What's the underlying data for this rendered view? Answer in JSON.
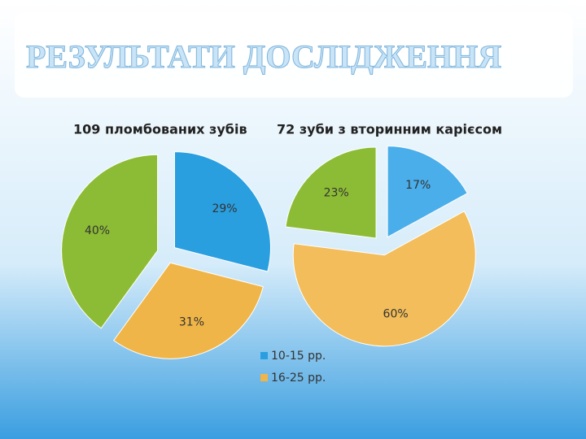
{
  "title": "РЕЗУЛЬТАТИ ДОСЛІДЖЕННЯ",
  "chart_data": [
    {
      "type": "pie",
      "title": "109 пломбованих зубів",
      "categories": [
        "10-15 рр.",
        "16-25 рр.",
        null
      ],
      "values": [
        29,
        31,
        40
      ],
      "value_labels": [
        "29%",
        "31%",
        "40%"
      ],
      "colors": [
        "#2a9fe0",
        "#f0b548",
        "#8cbc35"
      ]
    },
    {
      "type": "pie",
      "title": "72 зуби з вторинним карієсом",
      "values": [
        17,
        60,
        23
      ],
      "value_labels": [
        "17%",
        "60%",
        "23%"
      ],
      "colors": [
        "#4aaeea",
        "#f2bd5a",
        "#8cbc35"
      ]
    }
  ]
}
